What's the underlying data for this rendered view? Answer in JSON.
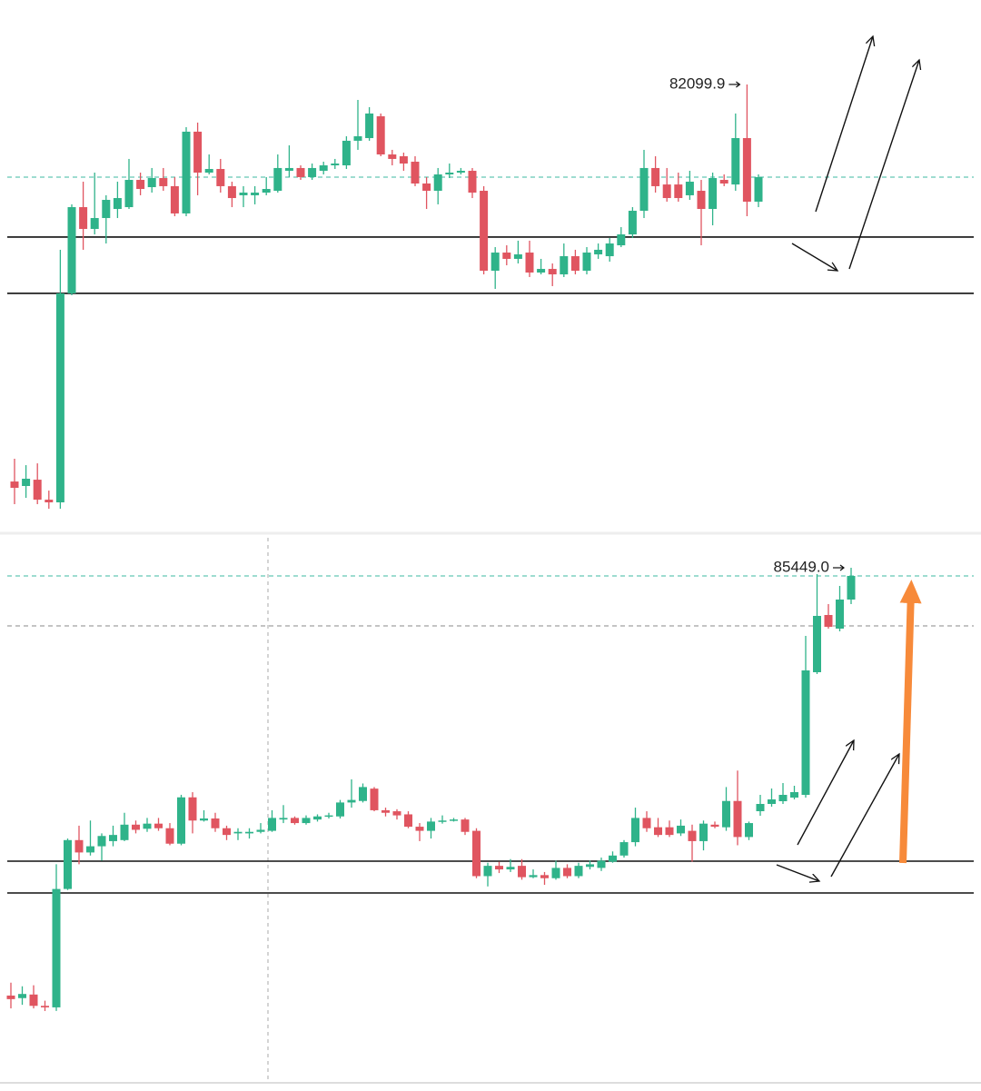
{
  "chart_data": [
    {
      "type": "candlestick",
      "open": [
        78385,
        78343,
        78402,
        78215,
        78190,
        80145,
        80952,
        80748,
        80850,
        80935,
        80952,
        81207,
        81139,
        81224,
        81148,
        80893,
        81658,
        81275,
        81309,
        81148,
        81063,
        81063,
        81088,
        81105,
        81292,
        81318,
        81233,
        81292,
        81343,
        81343,
        81573,
        81598,
        81802,
        81445,
        81428,
        81377,
        81173,
        81105,
        81258,
        81275,
        81292,
        81105,
        80357,
        80527,
        80468,
        80527,
        80340,
        80374,
        80323,
        80493,
        80357,
        80510,
        80493,
        80595,
        80697,
        80918,
        81318,
        81164,
        81164,
        81063,
        81105,
        80935,
        81207,
        81164,
        81598,
        81003
      ],
      "high": [
        78598,
        78538,
        78555,
        78300,
        80553,
        80978,
        81190,
        81275,
        81063,
        81190,
        81403,
        81275,
        81318,
        81318,
        81233,
        81700,
        81743,
        81445,
        81403,
        81190,
        81148,
        81148,
        81233,
        81445,
        81530,
        81343,
        81360,
        81377,
        81403,
        81615,
        81955,
        81887,
        81828,
        81488,
        81462,
        81428,
        81233,
        81318,
        81360,
        81318,
        81318,
        81148,
        80578,
        80595,
        80638,
        80638,
        80468,
        80425,
        80612,
        80553,
        80578,
        80612,
        80663,
        80765,
        80952,
        81488,
        81428,
        81318,
        81275,
        81292,
        81207,
        81275,
        81258,
        81828,
        82099.9,
        81258
      ],
      "low": [
        78173,
        78232,
        78173,
        78130,
        78130,
        80128,
        80553,
        80697,
        80612,
        80850,
        80935,
        81063,
        81088,
        81105,
        80867,
        80867,
        81063,
        81258,
        81088,
        80952,
        80952,
        80978,
        81063,
        81088,
        81233,
        81207,
        81207,
        81258,
        81309,
        81309,
        81488,
        81573,
        81428,
        81343,
        81292,
        81148,
        80935,
        80978,
        81224,
        81258,
        81037,
        80323,
        80187,
        80408,
        80425,
        80298,
        80323,
        80213,
        80298,
        80323,
        80323,
        80468,
        80442,
        80578,
        80663,
        80850,
        81088,
        81003,
        81003,
        81020,
        80595,
        80782,
        81148,
        81105,
        80867,
        80952
      ],
      "close": [
        78326,
        78411,
        78215,
        78190,
        80145,
        80952,
        80748,
        80850,
        81020,
        81037,
        81207,
        81122,
        81224,
        81148,
        80893,
        81658,
        81275,
        81309,
        81148,
        81037,
        81088,
        81088,
        81122,
        81318,
        81318,
        81233,
        81318,
        81343,
        81360,
        81573,
        81615,
        81828,
        81445,
        81403,
        81360,
        81173,
        81105,
        81258,
        81275,
        81292,
        81088,
        80357,
        80527,
        80468,
        80510,
        80340,
        80374,
        80323,
        80493,
        80357,
        80527,
        80553,
        80612,
        80697,
        80918,
        81318,
        81148,
        81037,
        81037,
        81190,
        80935,
        81224,
        81173,
        81598,
        81003,
        81233
      ],
      "ylim": [
        77918,
        82890
      ],
      "up_color": "#2fb38a",
      "down_color": "#e05560",
      "levels": [
        80672,
        80145
      ],
      "price_lines": [
        {
          "value": 81233,
          "color": "#3cb8a0"
        }
      ],
      "high_label": 82099.9
    },
    {
      "type": "candlestick",
      "open": [
        78385,
        78343,
        78402,
        78215,
        78190,
        80145,
        80952,
        80748,
        80850,
        80935,
        80952,
        81207,
        81139,
        81224,
        81148,
        80893,
        81658,
        81275,
        81309,
        81148,
        81063,
        81063,
        81088,
        81105,
        81292,
        81318,
        81233,
        81292,
        81343,
        81343,
        81573,
        81598,
        81802,
        81445,
        81428,
        81377,
        81173,
        81105,
        81258,
        81275,
        81292,
        81105,
        80357,
        80527,
        80468,
        80527,
        80340,
        80374,
        80323,
        80493,
        80357,
        80510,
        80493,
        80595,
        80697,
        80918,
        81318,
        81164,
        81164,
        81063,
        81105,
        80935,
        81207,
        81164,
        81598,
        81003,
        81429,
        81549,
        81594,
        81654,
        81699,
        83724,
        84669,
        84444,
        84924
      ],
      "high": [
        78598,
        78538,
        78555,
        78300,
        80553,
        80978,
        81190,
        81275,
        81063,
        81190,
        81403,
        81275,
        81318,
        81318,
        81233,
        81700,
        81743,
        81445,
        81403,
        81190,
        81148,
        81148,
        81233,
        81445,
        81530,
        81343,
        81360,
        81377,
        81403,
        81615,
        81955,
        81887,
        81828,
        81488,
        81462,
        81428,
        81233,
        81318,
        81360,
        81318,
        81318,
        81148,
        80578,
        80595,
        80638,
        80638,
        80468,
        80425,
        80612,
        80553,
        80578,
        80612,
        80663,
        80765,
        80952,
        81488,
        81428,
        81318,
        81275,
        81292,
        81207,
        81275,
        81258,
        81828,
        82099.9,
        81258,
        81699,
        81804,
        81894,
        81849,
        84324,
        85344,
        84849,
        85149,
        85449
      ],
      "low": [
        78173,
        78232,
        78173,
        78130,
        78130,
        80128,
        80553,
        80697,
        80612,
        80850,
        80935,
        81063,
        81088,
        81105,
        80867,
        80867,
        81063,
        81258,
        81088,
        80952,
        80952,
        80978,
        81063,
        81088,
        81233,
        81207,
        81207,
        81258,
        81309,
        81309,
        81488,
        81573,
        81428,
        81343,
        81292,
        81148,
        80935,
        80978,
        81224,
        81258,
        81037,
        80323,
        80187,
        80408,
        80425,
        80298,
        80323,
        80213,
        80298,
        80323,
        80323,
        80468,
        80442,
        80578,
        80663,
        80850,
        81088,
        81003,
        81003,
        81020,
        80595,
        80782,
        81148,
        81105,
        80867,
        80952,
        81354,
        81504,
        81549,
        81624,
        81654,
        83694,
        84444,
        84399,
        84849
      ],
      "close": [
        78326,
        78411,
        78215,
        78190,
        80145,
        80952,
        80748,
        80850,
        81020,
        81037,
        81207,
        81122,
        81224,
        81148,
        80893,
        81658,
        81275,
        81309,
        81148,
        81037,
        81088,
        81088,
        81122,
        81318,
        81318,
        81233,
        81318,
        81343,
        81360,
        81573,
        81615,
        81828,
        81445,
        81403,
        81360,
        81173,
        81105,
        81258,
        81275,
        81292,
        81088,
        80357,
        80527,
        80468,
        80510,
        80340,
        80374,
        80323,
        80493,
        80357,
        80527,
        80553,
        80612,
        80697,
        80918,
        81318,
        81148,
        81037,
        81037,
        81190,
        80935,
        81224,
        81173,
        81598,
        81003,
        81233,
        81549,
        81624,
        81699,
        81744,
        83754,
        84654,
        84474,
        84924,
        85314
      ],
      "ylim": [
        76974,
        85974
      ],
      "up_color": "#2fb38a",
      "down_color": "#e05560",
      "levels": [
        80604,
        80079
      ],
      "price_lines": [
        {
          "value": 85314,
          "color": "#3cb8a0"
        },
        {
          "value": 84489,
          "color": "#888888"
        }
      ],
      "high_label": {
        "value": 85449,
        "label": "85449.0"
      }
    }
  ]
}
